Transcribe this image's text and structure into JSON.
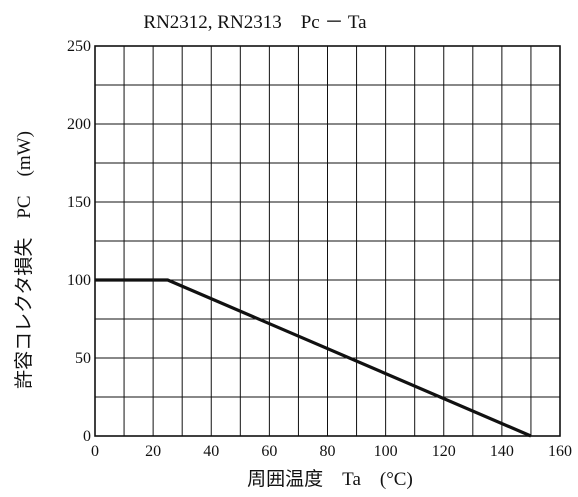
{
  "chart_data": {
    "type": "line",
    "title": "RN2312, RN2313　Pc － Ta",
    "xlabel": "周囲温度　Ta　(°C)",
    "ylabel": "許容コレクタ損失　PC　(mW)",
    "xlim": [
      0,
      160
    ],
    "ylim": [
      0,
      250
    ],
    "x_ticks": [
      "0",
      "20",
      "40",
      "60",
      "80",
      "100",
      "120",
      "140",
      "160"
    ],
    "y_ticks": [
      "0",
      "50",
      "100",
      "150",
      "200",
      "250"
    ],
    "grid": true,
    "grid_x_step": 10,
    "grid_y_step": 25,
    "series": [
      {
        "x": [
          0,
          25,
          150
        ],
        "y": [
          100,
          100,
          0
        ]
      }
    ]
  },
  "colors": {
    "line": "#111111",
    "grid": "#111111",
    "text": "#111111"
  }
}
